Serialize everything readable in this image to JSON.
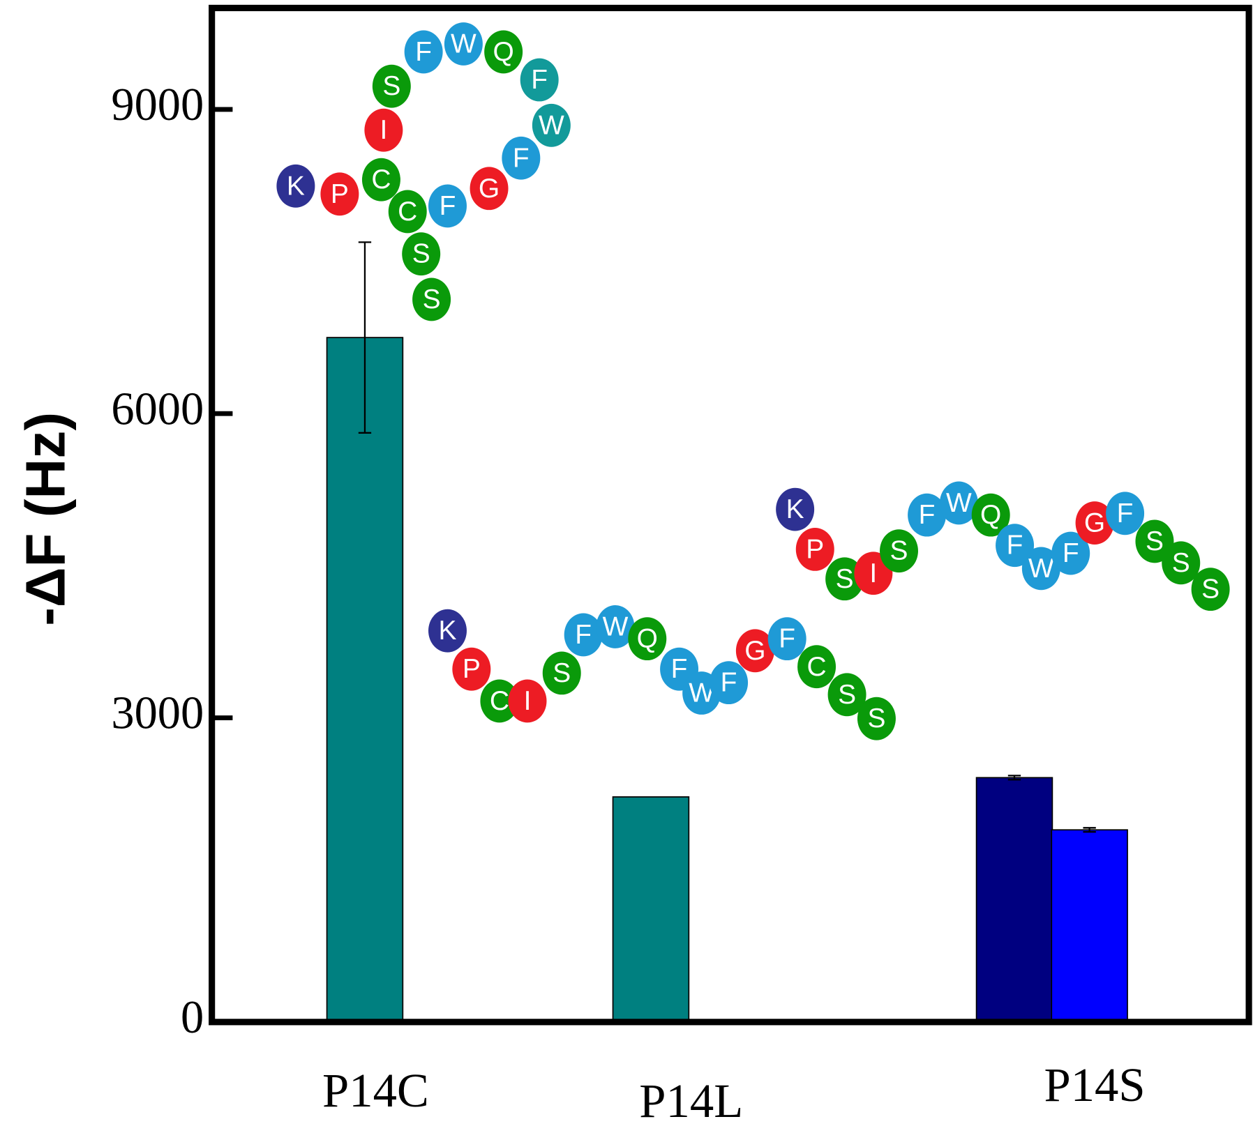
{
  "chart_data": {
    "type": "bar",
    "y_label": "-ΔF (Hz)",
    "categories": [
      "P14C",
      "P14L",
      "P14S"
    ],
    "series": [
      {
        "colors": [
          "#008080",
          "#008080",
          "#000080"
        ],
        "values": [
          6750,
          2220,
          2410
        ],
        "errors": [
          940,
          null,
          20
        ]
      },
      {
        "colors": [
          null,
          null,
          "#0000ff"
        ],
        "values": [
          null,
          null,
          1895
        ],
        "errors": [
          null,
          null,
          20
        ]
      }
    ],
    "ylim": [
      0,
      10000
    ],
    "yticks": [
      0,
      3000,
      6000,
      9000
    ],
    "annotations": [
      {
        "residues": [
          "K",
          "P",
          "C",
          "I",
          "S",
          "F",
          "W",
          "Q",
          "F",
          "W",
          "F",
          "G",
          "F",
          "C",
          "S",
          "S"
        ],
        "residue_colors": [
          "#2e3192",
          "#ed1c24",
          "#0a9a0a",
          "#ed1c24",
          "#0a9a0a",
          "#1f9ad6",
          "#1f9ad6",
          "#0a9a0a",
          "#129a9a",
          "#129a9a",
          "#1f9ad6",
          "#ed1c24",
          "#1f9ad6",
          "#0a9a0a",
          "#0a9a0a",
          "#0a9a0a"
        ]
      },
      {
        "residues": [
          "K",
          "P",
          "C",
          "I",
          "S",
          "F",
          "W",
          "Q",
          "F",
          "W",
          "F",
          "G",
          "F",
          "C",
          "S",
          "S"
        ],
        "residue_colors": [
          "#2e3192",
          "#ed1c24",
          "#0a9a0a",
          "#ed1c24",
          "#0a9a0a",
          "#1f9ad6",
          "#1f9ad6",
          "#0a9a0a",
          "#1f9ad6",
          "#1f9ad6",
          "#1f9ad6",
          "#ed1c24",
          "#1f9ad6",
          "#0a9a0a",
          "#0a9a0a",
          "#0a9a0a"
        ]
      },
      {
        "residues": [
          "K",
          "P",
          "S",
          "I",
          "S",
          "F",
          "W",
          "Q",
          "F",
          "W",
          "F",
          "G",
          "F",
          "S",
          "S",
          "S"
        ],
        "residue_colors": [
          "#2e3192",
          "#ed1c24",
          "#0a9a0a",
          "#ed1c24",
          "#0a9a0a",
          "#1f9ad6",
          "#1f9ad6",
          "#0a9a0a",
          "#1f9ad6",
          "#1f9ad6",
          "#1f9ad6",
          "#ed1c24",
          "#1f9ad6",
          "#0a9a0a",
          "#0a9a0a",
          "#0a9a0a"
        ]
      }
    ]
  }
}
